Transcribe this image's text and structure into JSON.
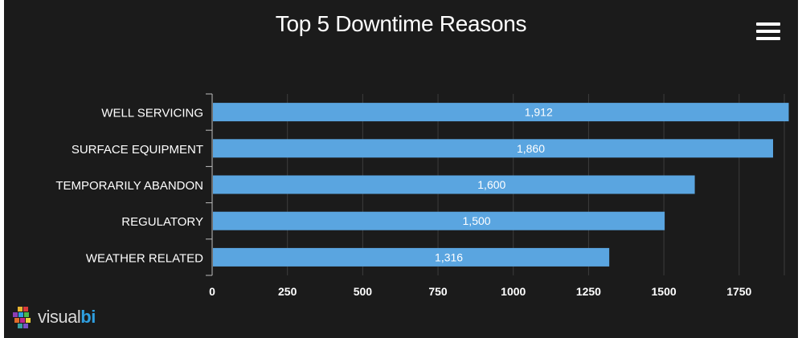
{
  "chart_data": {
    "type": "bar",
    "orientation": "horizontal",
    "title": "Top 5 Downtime Reasons",
    "categories": [
      "WELL SERVICING",
      "SURFACE EQUIPMENT",
      "TEMPORARILY ABANDON",
      "REGULATORY",
      "WEATHER RELATED"
    ],
    "values": [
      1912,
      1860,
      1600,
      1500,
      1316
    ],
    "value_labels": [
      "1,912",
      "1,860",
      "1,600",
      "1,500",
      "1,316"
    ],
    "xlim": [
      0,
      1900
    ],
    "xticks": [
      0,
      250,
      500,
      750,
      1000,
      1250,
      1500,
      1750
    ],
    "grid": true,
    "bar_color": "#5aa5e0",
    "background": "#1b1b1b"
  },
  "menu": {
    "icon": "hamburger-menu-icon"
  },
  "logo": {
    "text_main": "visual",
    "text_accent": "bi",
    "icon": "cube-logo-icon"
  }
}
